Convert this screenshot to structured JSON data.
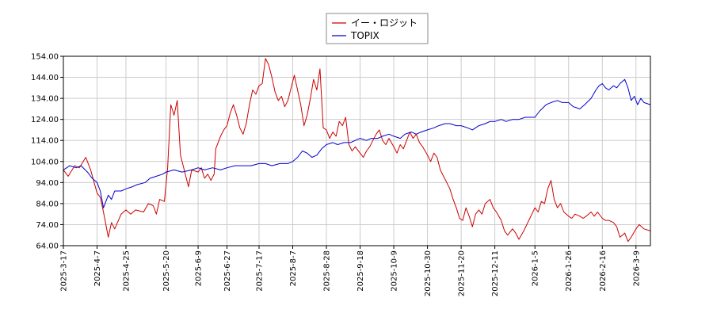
{
  "chart_data": {
    "type": "line",
    "title": "",
    "xlabel": "",
    "ylabel": "",
    "ylim": [
      64.0,
      154.0
    ],
    "y_ticks": [
      "64.00",
      "74.00",
      "84.00",
      "94.00",
      "104.00",
      "114.00",
      "124.00",
      "134.00",
      "144.00",
      "154.00"
    ],
    "x_range": [
      "2025-3-17",
      "2026-3-18"
    ],
    "x_ticks": [
      "2025-3-17",
      "2025-4-7",
      "2025-4-25",
      "2025-5-20",
      "2025-6-9",
      "2025-6-27",
      "2025-7-17",
      "2025-8-7",
      "2025-8-28",
      "2025-9-18",
      "2025-10-9",
      "2025-10-30",
      "2025-11-20",
      "2025-12-11",
      "2026-1-5",
      "2026-1-26",
      "2026-2-16",
      "2026-3-9"
    ],
    "grid": true,
    "legend_position": "top-center",
    "series": [
      {
        "name": "イー・ロジット",
        "color": "#cc0000",
        "points": [
          [
            "2025-3-17",
            100
          ],
          [
            "2025-3-20",
            97
          ],
          [
            "2025-3-24",
            102
          ],
          [
            "2025-3-27",
            101
          ],
          [
            "2025-3-31",
            106
          ],
          [
            "2025-4-3",
            100
          ],
          [
            "2025-4-7",
            89
          ],
          [
            "2025-4-9",
            87
          ],
          [
            "2025-4-11",
            80
          ],
          [
            "2025-4-14",
            68
          ],
          [
            "2025-4-16",
            75
          ],
          [
            "2025-4-18",
            72
          ],
          [
            "2025-4-22",
            79
          ],
          [
            "2025-4-25",
            81
          ],
          [
            "2025-4-28",
            79
          ],
          [
            "2025-5-1",
            81
          ],
          [
            "2025-5-6",
            80
          ],
          [
            "2025-5-9",
            84
          ],
          [
            "2025-5-12",
            83
          ],
          [
            "2025-5-14",
            79
          ],
          [
            "2025-5-16",
            86
          ],
          [
            "2025-5-19",
            85
          ],
          [
            "2025-5-21",
            101
          ],
          [
            "2025-5-23",
            131
          ],
          [
            "2025-5-25",
            126
          ],
          [
            "2025-5-27",
            133
          ],
          [
            "2025-5-29",
            107
          ],
          [
            "2025-6-1",
            98
          ],
          [
            "2025-6-3",
            92
          ],
          [
            "2025-6-5",
            100
          ],
          [
            "2025-6-9",
            99
          ],
          [
            "2025-6-11",
            101
          ],
          [
            "2025-6-13",
            96
          ],
          [
            "2025-6-15",
            98
          ],
          [
            "2025-6-17",
            95
          ],
          [
            "2025-6-19",
            98
          ],
          [
            "2025-6-20",
            110
          ],
          [
            "2025-6-23",
            116
          ],
          [
            "2025-6-25",
            119
          ],
          [
            "2025-6-27",
            121
          ],
          [
            "2025-6-29",
            127
          ],
          [
            "2025-7-1",
            131
          ],
          [
            "2025-7-3",
            126
          ],
          [
            "2025-7-5",
            120
          ],
          [
            "2025-7-7",
            117
          ],
          [
            "2025-7-9",
            122
          ],
          [
            "2025-7-11",
            131
          ],
          [
            "2025-7-13",
            138
          ],
          [
            "2025-7-15",
            136
          ],
          [
            "2025-7-17",
            140
          ],
          [
            "2025-7-19",
            141
          ],
          [
            "2025-7-21",
            153
          ],
          [
            "2025-7-23",
            150
          ],
          [
            "2025-7-25",
            144
          ],
          [
            "2025-7-27",
            137
          ],
          [
            "2025-7-29",
            133
          ],
          [
            "2025-7-31",
            135
          ],
          [
            "2025-8-2",
            130
          ],
          [
            "2025-8-4",
            133
          ],
          [
            "2025-8-6",
            139
          ],
          [
            "2025-8-8",
            145
          ],
          [
            "2025-8-10",
            138
          ],
          [
            "2025-8-12",
            131
          ],
          [
            "2025-8-14",
            121
          ],
          [
            "2025-8-16",
            126
          ],
          [
            "2025-8-18",
            134
          ],
          [
            "2025-8-20",
            143
          ],
          [
            "2025-8-22",
            138
          ],
          [
            "2025-8-24",
            148
          ],
          [
            "2025-8-26",
            120
          ],
          [
            "2025-8-28",
            119
          ],
          [
            "2025-8-30",
            115
          ],
          [
            "2025-9-1",
            118
          ],
          [
            "2025-9-3",
            116
          ],
          [
            "2025-9-5",
            123
          ],
          [
            "2025-9-7",
            121
          ],
          [
            "2025-9-9",
            125
          ],
          [
            "2025-9-11",
            112
          ],
          [
            "2025-9-13",
            109
          ],
          [
            "2025-9-15",
            111
          ],
          [
            "2025-9-18",
            108
          ],
          [
            "2025-9-20",
            106
          ],
          [
            "2025-9-22",
            109
          ],
          [
            "2025-9-24",
            111
          ],
          [
            "2025-9-26",
            114
          ],
          [
            "2025-9-28",
            117
          ],
          [
            "2025-9-30",
            119
          ],
          [
            "2025-10-2",
            114
          ],
          [
            "2025-10-4",
            112
          ],
          [
            "2025-10-6",
            115
          ],
          [
            "2025-10-9",
            111
          ],
          [
            "2025-10-11",
            108
          ],
          [
            "2025-10-13",
            112
          ],
          [
            "2025-10-15",
            110
          ],
          [
            "2025-10-17",
            114
          ],
          [
            "2025-10-19",
            118
          ],
          [
            "2025-10-21",
            115
          ],
          [
            "2025-10-23",
            117
          ],
          [
            "2025-10-25",
            113
          ],
          [
            "2025-10-27",
            111
          ],
          [
            "2025-10-30",
            107
          ],
          [
            "2025-11-1",
            104
          ],
          [
            "2025-11-3",
            108
          ],
          [
            "2025-11-5",
            106
          ],
          [
            "2025-11-7",
            100
          ],
          [
            "2025-11-9",
            97
          ],
          [
            "2025-11-11",
            94
          ],
          [
            "2025-11-13",
            91
          ],
          [
            "2025-11-15",
            86
          ],
          [
            "2025-11-17",
            82
          ],
          [
            "2025-11-19",
            77
          ],
          [
            "2025-11-21",
            76
          ],
          [
            "2025-11-23",
            82
          ],
          [
            "2025-11-25",
            78
          ],
          [
            "2025-11-27",
            73
          ],
          [
            "2025-11-29",
            79
          ],
          [
            "2025-12-1",
            81
          ],
          [
            "2025-12-3",
            79
          ],
          [
            "2025-12-5",
            84
          ],
          [
            "2025-12-8",
            86
          ],
          [
            "2025-12-10",
            82
          ],
          [
            "2025-12-12",
            80
          ],
          [
            "2025-12-15",
            76
          ],
          [
            "2025-12-17",
            71
          ],
          [
            "2025-12-19",
            69
          ],
          [
            "2025-12-22",
            72
          ],
          [
            "2025-12-24",
            70
          ],
          [
            "2025-12-26",
            67
          ],
          [
            "2025-12-29",
            71
          ],
          [
            "2026-1-5",
            82
          ],
          [
            "2026-1-7",
            80
          ],
          [
            "2026-1-9",
            85
          ],
          [
            "2026-1-11",
            84
          ],
          [
            "2026-1-13",
            91
          ],
          [
            "2026-1-15",
            95
          ],
          [
            "2026-1-17",
            86
          ],
          [
            "2026-1-19",
            82
          ],
          [
            "2026-1-21",
            84
          ],
          [
            "2026-1-23",
            80
          ],
          [
            "2026-1-26",
            78
          ],
          [
            "2026-1-28",
            77
          ],
          [
            "2026-1-30",
            79
          ],
          [
            "2026-2-2",
            78
          ],
          [
            "2026-2-4",
            77
          ],
          [
            "2026-2-6",
            78
          ],
          [
            "2026-2-9",
            80
          ],
          [
            "2026-2-11",
            78
          ],
          [
            "2026-2-13",
            80
          ],
          [
            "2026-2-16",
            77
          ],
          [
            "2026-2-18",
            76
          ],
          [
            "2026-2-20",
            76
          ],
          [
            "2026-2-23",
            75
          ],
          [
            "2026-2-25",
            73
          ],
          [
            "2026-2-27",
            68
          ],
          [
            "2026-3-2",
            70
          ],
          [
            "2026-3-4",
            66
          ],
          [
            "2026-3-6",
            68
          ],
          [
            "2026-3-9",
            72
          ],
          [
            "2026-3-11",
            74
          ],
          [
            "2026-3-14",
            72
          ],
          [
            "2026-3-18",
            71
          ]
        ]
      },
      {
        "name": "TOPIX",
        "color": "#0000cc",
        "points": [
          [
            "2025-3-17",
            100
          ],
          [
            "2025-3-21",
            102
          ],
          [
            "2025-3-25",
            101
          ],
          [
            "2025-3-28",
            102
          ],
          [
            "2025-4-1",
            99
          ],
          [
            "2025-4-4",
            96
          ],
          [
            "2025-4-7",
            94
          ],
          [
            "2025-4-9",
            90
          ],
          [
            "2025-4-11",
            82
          ],
          [
            "2025-4-14",
            88
          ],
          [
            "2025-4-16",
            86
          ],
          [
            "2025-4-18",
            90
          ],
          [
            "2025-4-22",
            90
          ],
          [
            "2025-4-25",
            91
          ],
          [
            "2025-4-29",
            92
          ],
          [
            "2025-5-2",
            93
          ],
          [
            "2025-5-7",
            94
          ],
          [
            "2025-5-10",
            96
          ],
          [
            "2025-5-14",
            97
          ],
          [
            "2025-5-18",
            98
          ],
          [
            "2025-5-20",
            99
          ],
          [
            "2025-5-25",
            100
          ],
          [
            "2025-5-30",
            99
          ],
          [
            "2025-6-5",
            100
          ],
          [
            "2025-6-9",
            101
          ],
          [
            "2025-6-13",
            100
          ],
          [
            "2025-6-18",
            101
          ],
          [
            "2025-6-23",
            100
          ],
          [
            "2025-6-27",
            101
          ],
          [
            "2025-7-2",
            102
          ],
          [
            "2025-7-7",
            102
          ],
          [
            "2025-7-12",
            102
          ],
          [
            "2025-7-17",
            103
          ],
          [
            "2025-7-21",
            103
          ],
          [
            "2025-7-25",
            102
          ],
          [
            "2025-7-30",
            103
          ],
          [
            "2025-8-4",
            103
          ],
          [
            "2025-8-7",
            104
          ],
          [
            "2025-8-10",
            106
          ],
          [
            "2025-8-13",
            109
          ],
          [
            "2025-8-16",
            108
          ],
          [
            "2025-8-19",
            106
          ],
          [
            "2025-8-22",
            107
          ],
          [
            "2025-8-25",
            110
          ],
          [
            "2025-8-28",
            112
          ],
          [
            "2025-9-1",
            113
          ],
          [
            "2025-9-4",
            112
          ],
          [
            "2025-9-8",
            113
          ],
          [
            "2025-9-12",
            113
          ],
          [
            "2025-9-15",
            114
          ],
          [
            "2025-9-18",
            115
          ],
          [
            "2025-9-22",
            114
          ],
          [
            "2025-9-25",
            115
          ],
          [
            "2025-9-29",
            115
          ],
          [
            "2025-10-2",
            116
          ],
          [
            "2025-10-6",
            117
          ],
          [
            "2025-10-9",
            116
          ],
          [
            "2025-10-13",
            115
          ],
          [
            "2025-10-16",
            117
          ],
          [
            "2025-10-20",
            118
          ],
          [
            "2025-10-23",
            117
          ],
          [
            "2025-10-26",
            118
          ],
          [
            "2025-10-30",
            119
          ],
          [
            "2025-11-3",
            120
          ],
          [
            "2025-11-6",
            121
          ],
          [
            "2025-11-10",
            122
          ],
          [
            "2025-11-13",
            122
          ],
          [
            "2025-11-17",
            121
          ],
          [
            "2025-11-20",
            121
          ],
          [
            "2025-11-24",
            120
          ],
          [
            "2025-11-27",
            119
          ],
          [
            "2025-12-1",
            121
          ],
          [
            "2025-12-5",
            122
          ],
          [
            "2025-12-8",
            123
          ],
          [
            "2025-12-11",
            123
          ],
          [
            "2025-12-15",
            124
          ],
          [
            "2025-12-18",
            123
          ],
          [
            "2025-12-22",
            124
          ],
          [
            "2025-12-26",
            124
          ],
          [
            "2025-12-30",
            125
          ],
          [
            "2026-1-5",
            125
          ],
          [
            "2026-1-8",
            128
          ],
          [
            "2026-1-12",
            131
          ],
          [
            "2026-1-15",
            132
          ],
          [
            "2026-1-19",
            133
          ],
          [
            "2026-1-22",
            132
          ],
          [
            "2026-1-26",
            132
          ],
          [
            "2026-1-29",
            130
          ],
          [
            "2026-2-2",
            129
          ],
          [
            "2026-2-5",
            131
          ],
          [
            "2026-2-9",
            134
          ],
          [
            "2026-2-12",
            138
          ],
          [
            "2026-2-14",
            140
          ],
          [
            "2026-2-16",
            141
          ],
          [
            "2026-2-18",
            139
          ],
          [
            "2026-2-20",
            138
          ],
          [
            "2026-2-23",
            140
          ],
          [
            "2026-2-25",
            139
          ],
          [
            "2026-2-27",
            141
          ],
          [
            "2026-3-2",
            143
          ],
          [
            "2026-3-4",
            139
          ],
          [
            "2026-3-6",
            133
          ],
          [
            "2026-3-8",
            135
          ],
          [
            "2026-3-10",
            131
          ],
          [
            "2026-3-12",
            134
          ],
          [
            "2026-3-14",
            132
          ],
          [
            "2026-3-18",
            131
          ]
        ]
      }
    ]
  }
}
